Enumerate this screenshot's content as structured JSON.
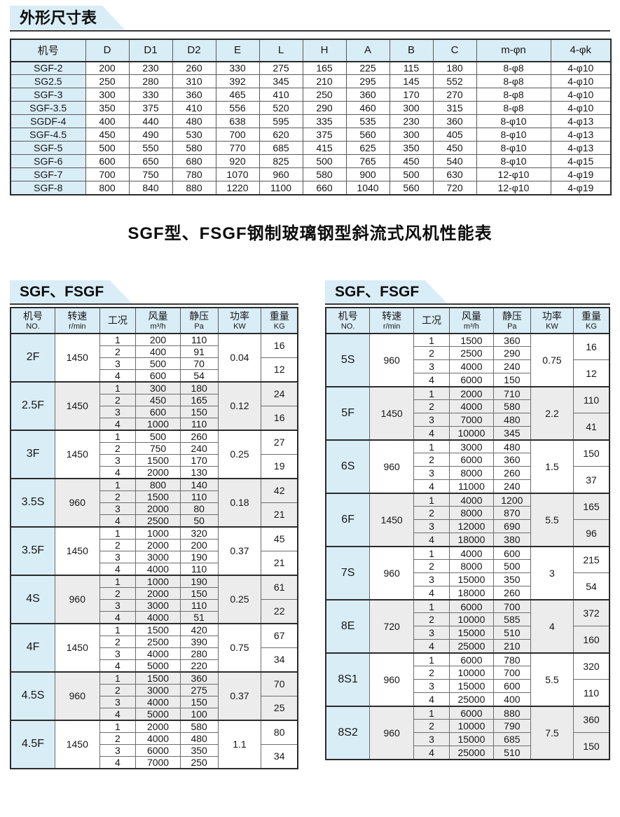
{
  "page": {
    "dim_tab_label": "外形尺寸表",
    "main_title": "SGF型、FSGF钢制玻璃钢型斜流式风机性能表",
    "left_tab_label": "SGF、FSGF",
    "right_tab_label": "SGF、FSGF"
  },
  "colors": {
    "accent_blue": "#d9edf7",
    "shade_gray": "#ececec",
    "border_dark": "#2b2b2b"
  },
  "dim_table": {
    "headers": [
      "机号",
      "D",
      "D1",
      "D2",
      "E",
      "L",
      "H",
      "A",
      "B",
      "C",
      "m-φn",
      "4-φk"
    ],
    "rows": [
      [
        "SGF-2",
        "200",
        "230",
        "260",
        "330",
        "275",
        "165",
        "225",
        "115",
        "180",
        "8-φ8",
        "4-φ10"
      ],
      [
        "SG2.5",
        "250",
        "280",
        "310",
        "392",
        "345",
        "210",
        "295",
        "145",
        "552",
        "8-φ8",
        "4-φ10"
      ],
      [
        "SGF-3",
        "300",
        "330",
        "360",
        "465",
        "410",
        "250",
        "360",
        "170",
        "270",
        "8-φ8",
        "4-φ10"
      ],
      [
        "SGF-3.5",
        "350",
        "375",
        "410",
        "556",
        "520",
        "290",
        "460",
        "300",
        "315",
        "8-φ8",
        "4-φ10"
      ],
      [
        "SGDF-4",
        "400",
        "440",
        "480",
        "638",
        "595",
        "335",
        "535",
        "230",
        "360",
        "8-φ10",
        "4-φ13"
      ],
      [
        "SGF-4.5",
        "450",
        "490",
        "530",
        "700",
        "620",
        "375",
        "560",
        "300",
        "405",
        "8-φ10",
        "4-φ13"
      ],
      [
        "SGF-5",
        "500",
        "550",
        "580",
        "770",
        "685",
        "415",
        "625",
        "350",
        "450",
        "8-φ10",
        "4-φ13"
      ],
      [
        "SGF-6",
        "600",
        "650",
        "680",
        "920",
        "825",
        "500",
        "765",
        "450",
        "540",
        "8-φ10",
        "4-φ15"
      ],
      [
        "SGF-7",
        "700",
        "750",
        "780",
        "1070",
        "960",
        "580",
        "900",
        "500",
        "630",
        "12-φ10",
        "4-φ19"
      ],
      [
        "SGF-8",
        "800",
        "840",
        "880",
        "1220",
        "1100",
        "660",
        "1040",
        "560",
        "720",
        "12-φ10",
        "4-φ19"
      ]
    ]
  },
  "perf_headers": [
    {
      "top": "机号",
      "sub": "NO."
    },
    {
      "top": "转速",
      "sub": "r/min"
    },
    {
      "top": "工况",
      "sub": ""
    },
    {
      "top": "风量",
      "sub": "m³/h"
    },
    {
      "top": "静压",
      "sub": "Pa"
    },
    {
      "top": "功率",
      "sub": "KW"
    },
    {
      "top": "重量",
      "sub": "KG"
    }
  ],
  "perf_left": [
    {
      "model": "2F",
      "speed": "1450",
      "power": "0.04",
      "weights": [
        "16",
        "12"
      ],
      "points": [
        [
          "1",
          "200",
          "110"
        ],
        [
          "2",
          "400",
          "91"
        ],
        [
          "3",
          "500",
          "70"
        ],
        [
          "4",
          "600",
          "54"
        ]
      ]
    },
    {
      "model": "2.5F",
      "speed": "1450",
      "power": "0.12",
      "weights": [
        "24",
        "16"
      ],
      "points": [
        [
          "1",
          "300",
          "180"
        ],
        [
          "2",
          "450",
          "165"
        ],
        [
          "3",
          "600",
          "150"
        ],
        [
          "4",
          "1000",
          "110"
        ]
      ]
    },
    {
      "model": "3F",
      "speed": "1450",
      "power": "0.25",
      "weights": [
        "27",
        "19"
      ],
      "points": [
        [
          "1",
          "500",
          "260"
        ],
        [
          "2",
          "750",
          "240"
        ],
        [
          "3",
          "1500",
          "170"
        ],
        [
          "4",
          "2000",
          "130"
        ]
      ]
    },
    {
      "model": "3.5S",
      "speed": "960",
      "power": "0.18",
      "weights": [
        "42",
        "21"
      ],
      "points": [
        [
          "1",
          "800",
          "140"
        ],
        [
          "2",
          "1500",
          "110"
        ],
        [
          "3",
          "2000",
          "80"
        ],
        [
          "4",
          "2500",
          "50"
        ]
      ]
    },
    {
      "model": "3.5F",
      "speed": "1450",
      "power": "0.37",
      "weights": [
        "45",
        "21"
      ],
      "points": [
        [
          "1",
          "1000",
          "320"
        ],
        [
          "2",
          "2000",
          "200"
        ],
        [
          "3",
          "3000",
          "190"
        ],
        [
          "4",
          "4000",
          "110"
        ]
      ]
    },
    {
      "model": "4S",
      "speed": "960",
      "power": "0.25",
      "weights": [
        "61",
        "22"
      ],
      "points": [
        [
          "1",
          "1000",
          "190"
        ],
        [
          "2",
          "2000",
          "150"
        ],
        [
          "3",
          "3000",
          "110"
        ],
        [
          "4",
          "4000",
          "51"
        ]
      ]
    },
    {
      "model": "4F",
      "speed": "1450",
      "power": "0.75",
      "weights": [
        "67",
        "34"
      ],
      "points": [
        [
          "1",
          "1500",
          "420"
        ],
        [
          "2",
          "2500",
          "390"
        ],
        [
          "3",
          "4000",
          "280"
        ],
        [
          "4",
          "5000",
          "220"
        ]
      ]
    },
    {
      "model": "4.5S",
      "speed": "960",
      "power": "0.37",
      "weights": [
        "70",
        "25"
      ],
      "points": [
        [
          "1",
          "1500",
          "360"
        ],
        [
          "2",
          "3000",
          "275"
        ],
        [
          "3",
          "4000",
          "150"
        ],
        [
          "4",
          "5000",
          "100"
        ]
      ]
    },
    {
      "model": "4.5F",
      "speed": "1450",
      "power": "1.1",
      "weights": [
        "80",
        "34"
      ],
      "points": [
        [
          "1",
          "2000",
          "580"
        ],
        [
          "2",
          "4000",
          "480"
        ],
        [
          "3",
          "6000",
          "350"
        ],
        [
          "4",
          "7000",
          "250"
        ]
      ]
    }
  ],
  "perf_right": [
    {
      "model": "5S",
      "speed": "960",
      "power": "0.75",
      "weights": [
        "16",
        "12"
      ],
      "points": [
        [
          "1",
          "1500",
          "360"
        ],
        [
          "2",
          "2500",
          "290"
        ],
        [
          "3",
          "4000",
          "240"
        ],
        [
          "4",
          "6000",
          "150"
        ]
      ]
    },
    {
      "model": "5F",
      "speed": "1450",
      "power": "2.2",
      "weights": [
        "110",
        "41"
      ],
      "points": [
        [
          "1",
          "2000",
          "710"
        ],
        [
          "2",
          "4000",
          "580"
        ],
        [
          "3",
          "7000",
          "480"
        ],
        [
          "4",
          "10000",
          "345"
        ]
      ]
    },
    {
      "model": "6S",
      "speed": "960",
      "power": "1.5",
      "weights": [
        "150",
        "37"
      ],
      "points": [
        [
          "1",
          "3000",
          "480"
        ],
        [
          "2",
          "6000",
          "360"
        ],
        [
          "3",
          "8000",
          "260"
        ],
        [
          "4",
          "11000",
          "240"
        ]
      ]
    },
    {
      "model": "6F",
      "speed": "1450",
      "power": "5.5",
      "weights": [
        "165",
        "96"
      ],
      "points": [
        [
          "1",
          "4000",
          "1200"
        ],
        [
          "2",
          "8000",
          "870"
        ],
        [
          "3",
          "12000",
          "690"
        ],
        [
          "4",
          "18000",
          "380"
        ]
      ]
    },
    {
      "model": "7S",
      "speed": "960",
      "power": "3",
      "weights": [
        "215",
        "54"
      ],
      "points": [
        [
          "1",
          "4000",
          "600"
        ],
        [
          "2",
          "8000",
          "500"
        ],
        [
          "3",
          "15000",
          "350"
        ],
        [
          "4",
          "18000",
          "260"
        ]
      ]
    },
    {
      "model": "8E",
      "speed": "720",
      "power": "4",
      "weights": [
        "372",
        "160"
      ],
      "points": [
        [
          "1",
          "6000",
          "700"
        ],
        [
          "2",
          "10000",
          "585"
        ],
        [
          "3",
          "15000",
          "510"
        ],
        [
          "4",
          "25000",
          "210"
        ]
      ]
    },
    {
      "model": "8S1",
      "speed": "960",
      "power": "5.5",
      "weights": [
        "320",
        "110"
      ],
      "points": [
        [
          "1",
          "6000",
          "780"
        ],
        [
          "2",
          "10000",
          "700"
        ],
        [
          "3",
          "15000",
          "600"
        ],
        [
          "4",
          "25000",
          "400"
        ]
      ]
    },
    {
      "model": "8S2",
      "speed": "960",
      "power": "7.5",
      "weights": [
        "360",
        "150"
      ],
      "points": [
        [
          "1",
          "6000",
          "880"
        ],
        [
          "2",
          "10000",
          "790"
        ],
        [
          "3",
          "15000",
          "685"
        ],
        [
          "4",
          "25000",
          "510"
        ]
      ]
    }
  ]
}
